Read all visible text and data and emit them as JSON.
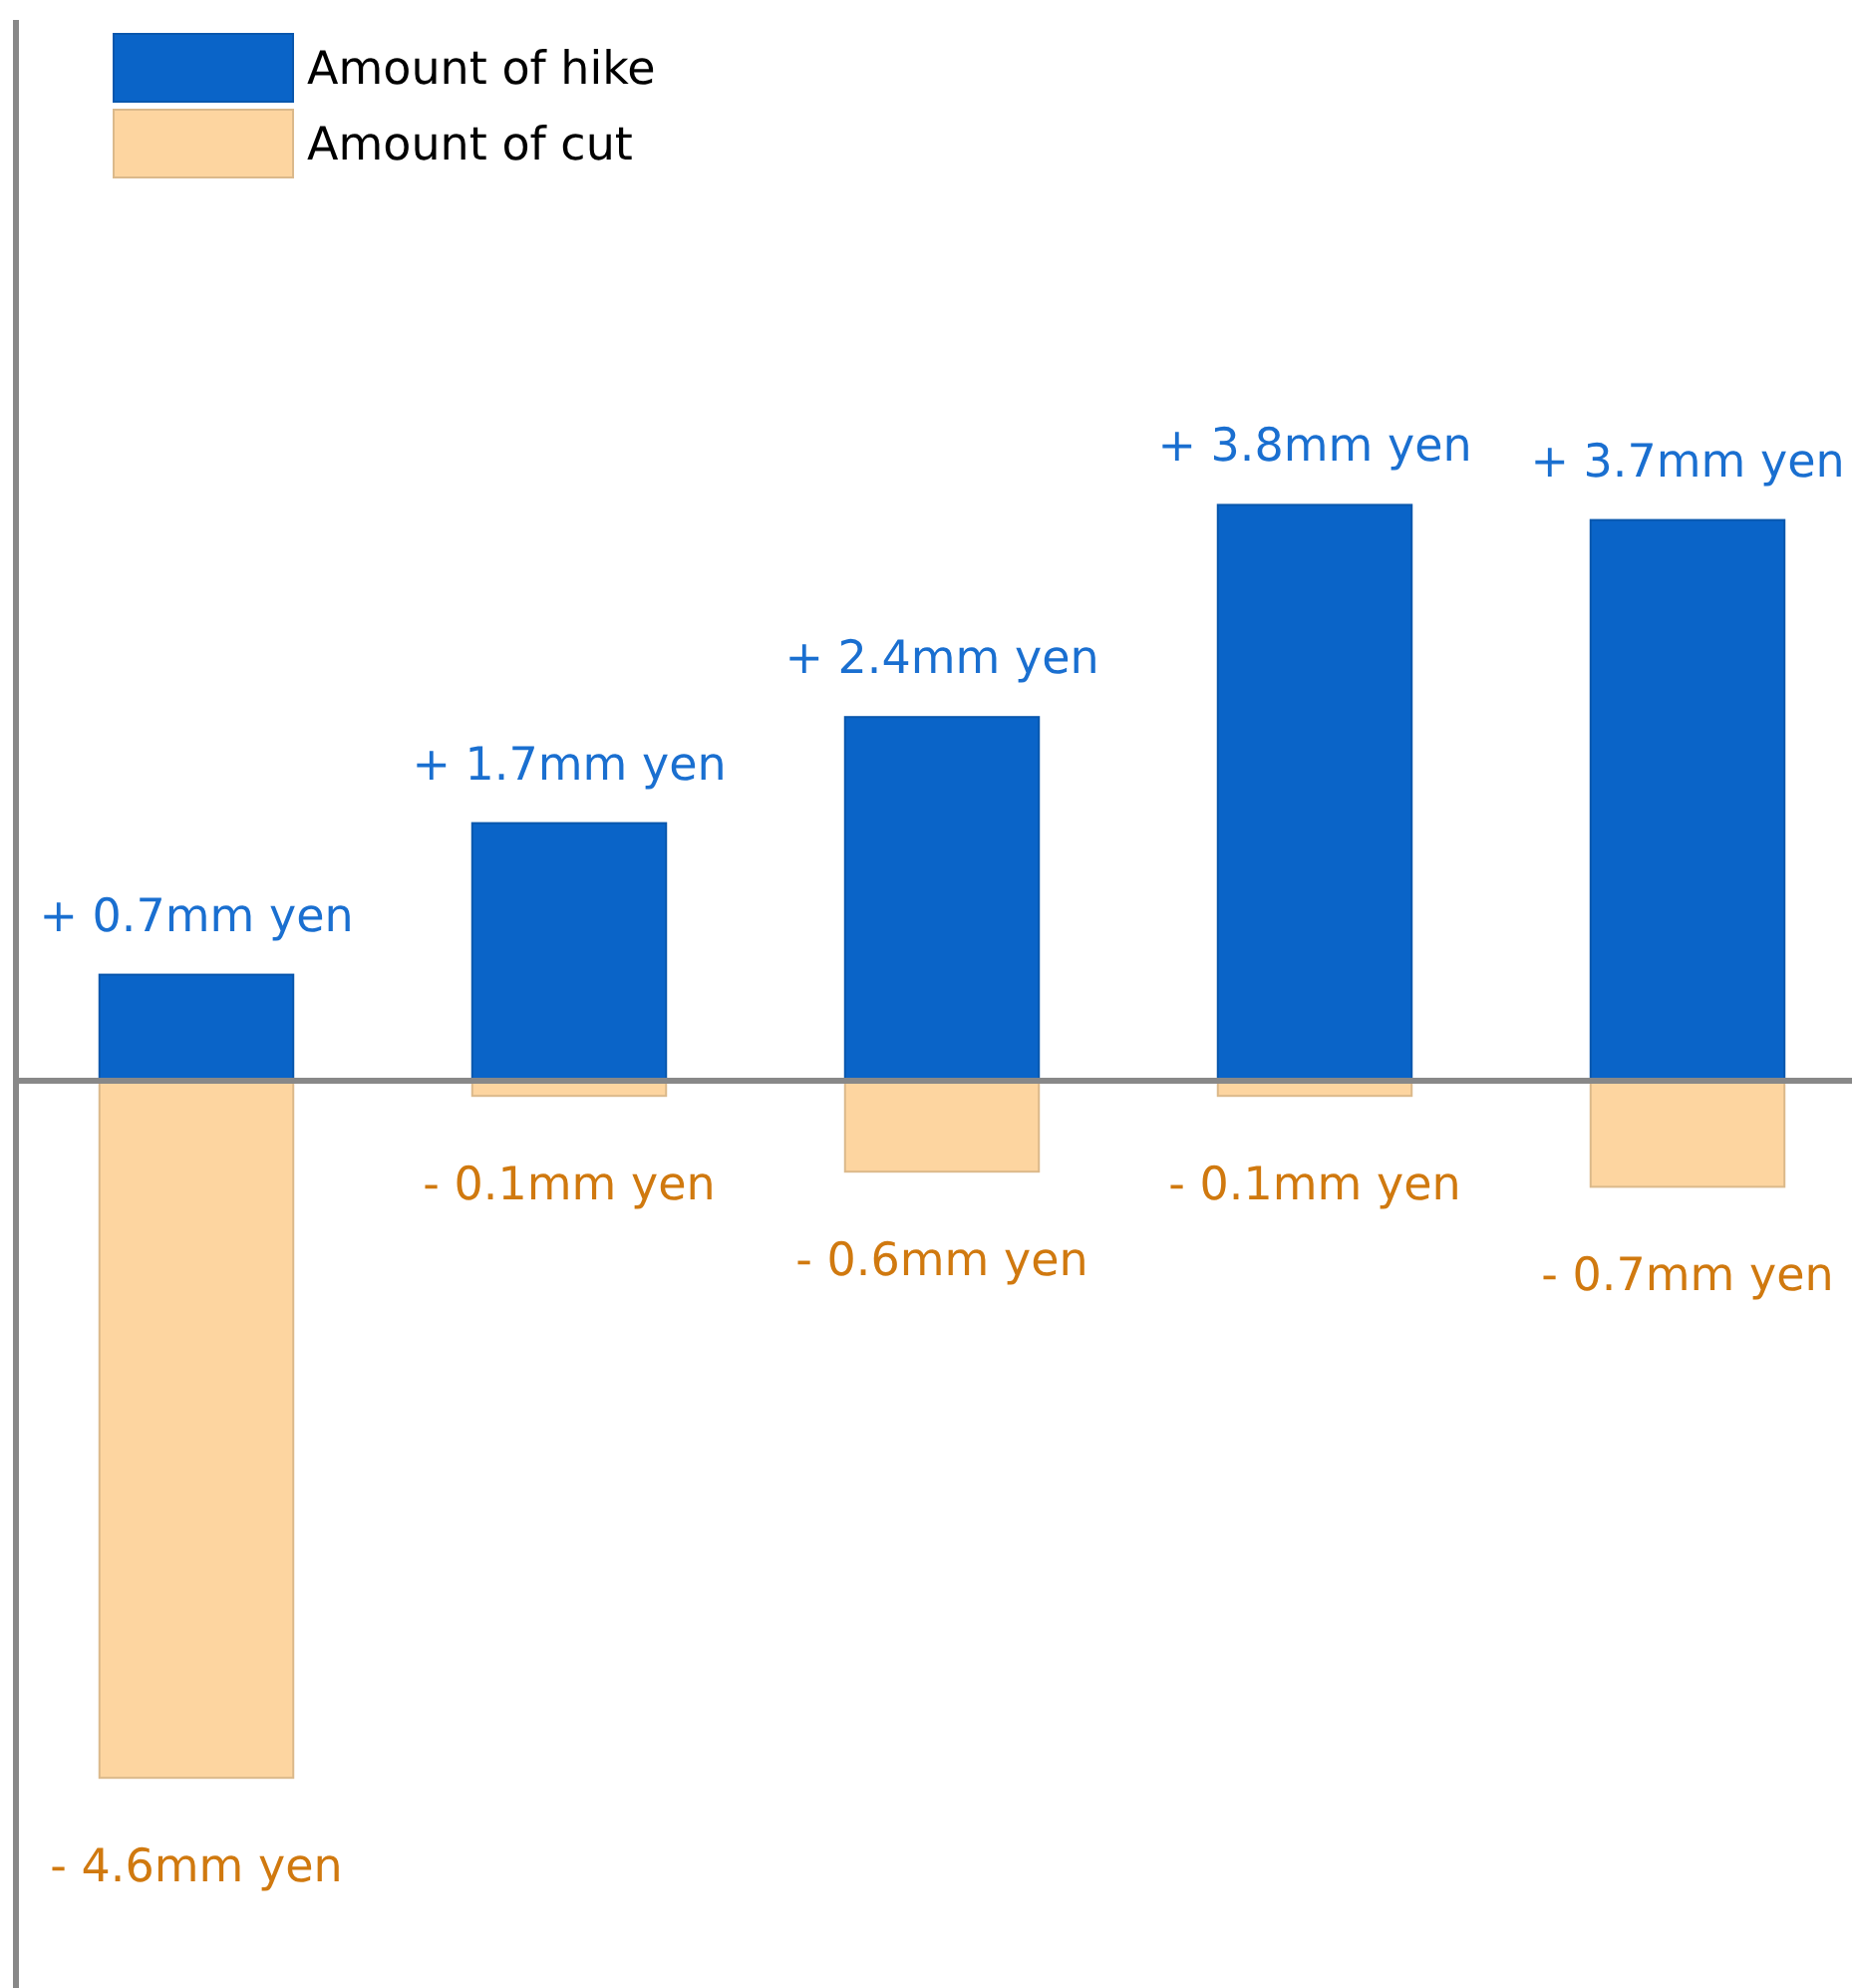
{
  "chart_data": {
    "type": "bar",
    "stacked": true,
    "categories": [
      null,
      null,
      null,
      null,
      null
    ],
    "series": [
      {
        "name": "Amount of hike",
        "color": "#0a64c8",
        "values": [
          0.7,
          1.7,
          2.4,
          3.8,
          3.7
        ],
        "value_labels": [
          "+ 0.7mm yen",
          "+ 1.7mm yen",
          "+ 2.4mm yen",
          "+ 3.8mm yen",
          "+ 3.7mm yen"
        ]
      },
      {
        "name": "Amount of cut",
        "color": "#fdd5a0",
        "values": [
          -4.6,
          -0.1,
          -0.6,
          -0.1,
          -0.7
        ],
        "value_labels": [
          "- 4.6mm yen",
          "- 0.1mm yen",
          "- 0.6mm yen",
          "- 0.1mm yen",
          "- 0.7mm yen"
        ]
      }
    ],
    "ylim": [
      -6,
      7
    ],
    "legend": "top left"
  }
}
